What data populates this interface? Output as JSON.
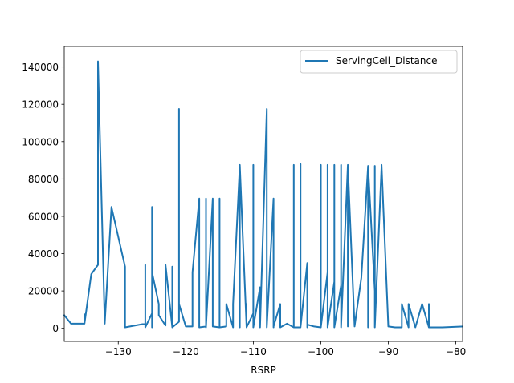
{
  "chart_data": {
    "type": "line",
    "xlabel": "RSRP",
    "ylabel": "",
    "xlim": [
      -138,
      -79
    ],
    "ylim": [
      -7000,
      151000
    ],
    "xticks": [
      -130,
      -120,
      -110,
      -100,
      -90,
      -80
    ],
    "xtick_labels": [
      "−130",
      "−120",
      "−110",
      "−100",
      "−90",
      "−80"
    ],
    "yticks": [
      0,
      20000,
      40000,
      60000,
      80000,
      100000,
      120000,
      140000
    ],
    "ytick_labels": [
      "0",
      "20000",
      "40000",
      "60000",
      "80000",
      "100000",
      "120000",
      "140000"
    ],
    "grid": false,
    "legend_position": "upper right",
    "series": [
      {
        "name": "ServingCell_Distance",
        "color": "#1f77b4",
        "x": [
          -138,
          -137,
          -135,
          -135,
          -135,
          -134,
          -133,
          -133,
          -132,
          -131,
          -129,
          -129,
          -126,
          -126,
          -126,
          -125,
          -125,
          -125,
          -125,
          -124,
          -124,
          -123,
          -123,
          -122,
          -122,
          -122,
          -121,
          -121,
          -121,
          -120,
          -119,
          -119,
          -118,
          -118,
          -117,
          -117,
          -117,
          -116,
          -116,
          -115,
          -115,
          -115,
          -114,
          -114,
          -113,
          -113,
          -112,
          -112,
          -112,
          -111,
          -111,
          -111,
          -110,
          -110,
          -110,
          -109,
          -109,
          -108,
          -108,
          -108,
          -107,
          -107,
          -107,
          -106,
          -106,
          -105,
          -104,
          -104,
          -104,
          -103,
          -103,
          -103,
          -102,
          -102,
          -102,
          -101,
          -100,
          -100,
          -100,
          -99,
          -99,
          -99,
          -98,
          -98,
          -98,
          -97,
          -97,
          -97,
          -96,
          -96,
          -96,
          -95,
          -94,
          -93,
          -93,
          -93,
          -92,
          -92,
          -92,
          -91,
          -91,
          -90,
          -89,
          -88,
          -88,
          -87,
          -87,
          -86,
          -85,
          -84,
          -84,
          -84,
          -82,
          -79
        ],
        "y": [
          7000,
          2500,
          2500,
          7500,
          2500,
          29000,
          34000,
          143000,
          2500,
          65000,
          33000,
          500,
          2500,
          34000,
          500,
          8000,
          65000,
          500,
          30000,
          13000,
          7000,
          1500,
          34000,
          500,
          33000,
          500,
          3500,
          117500,
          13000,
          1000,
          1000,
          30000,
          69500,
          500,
          1000,
          69500,
          500,
          69500,
          1000,
          500,
          69500,
          500,
          1000,
          13000,
          500,
          13000,
          87500,
          500,
          87500,
          500,
          13000,
          500,
          8000,
          87500,
          500,
          22000,
          500,
          117500,
          13000,
          500,
          69500,
          500,
          1000,
          13000,
          500,
          2500,
          500,
          87500,
          500,
          500,
          88000,
          500,
          35000,
          500,
          2000,
          1000,
          500,
          87500,
          500,
          30000,
          87500,
          500,
          25000,
          87500,
          500,
          23000,
          87500,
          500,
          87500,
          1000,
          87500,
          1000,
          27000,
          87000,
          500,
          87000,
          20000,
          87000,
          500,
          87000,
          87500,
          1000,
          500,
          500,
          13000,
          500,
          13000,
          500,
          13000,
          500,
          13000,
          500,
          500,
          1000
        ]
      }
    ]
  }
}
